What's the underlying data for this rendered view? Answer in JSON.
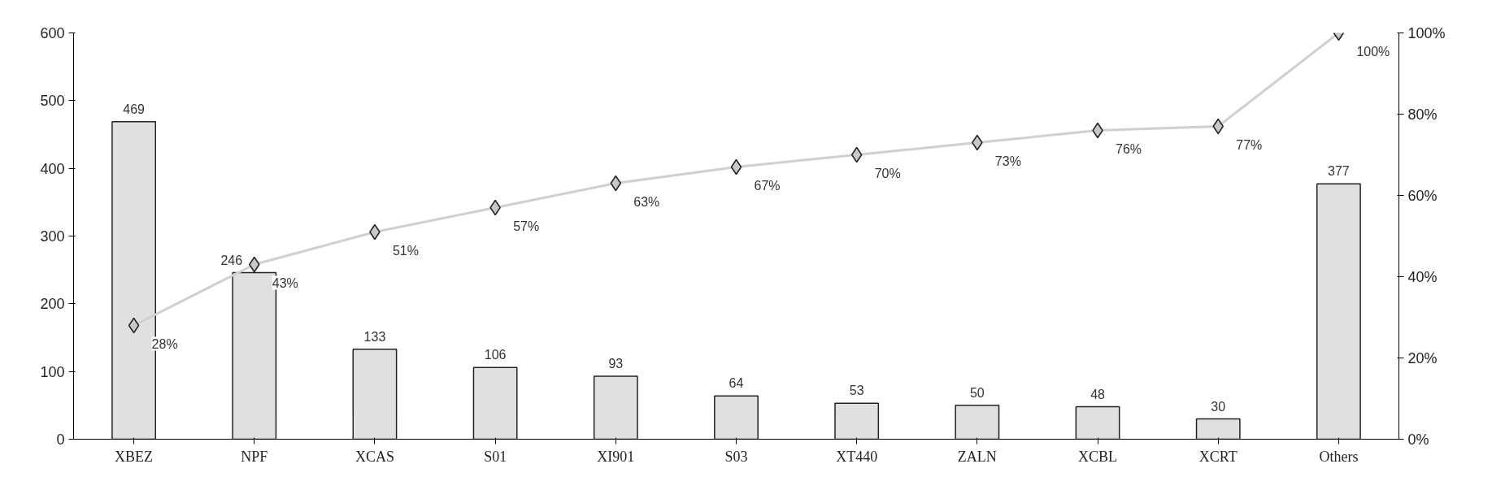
{
  "chart_data": {
    "type": "bar",
    "categories": [
      "XBEZ",
      "NPF",
      "XCAS",
      "S01",
      "XI901",
      "S03",
      "XT440",
      "ZALN",
      "XCBL",
      "XCRT",
      "Others"
    ],
    "series": [
      {
        "color": "#e0e0e0",
        "values": [
          469,
          246,
          133,
          106,
          93,
          64,
          53,
          50,
          48,
          30,
          377
        ],
        "data_labels": true
      },
      {
        "type": "line",
        "axis": "y2",
        "color": "#d0d0d0",
        "marker": "diamond",
        "values": [
          28,
          43,
          51,
          57,
          63,
          67,
          70,
          73,
          76,
          77,
          100
        ],
        "value_labels": [
          "28%",
          "43%",
          "51%",
          "57%",
          "63%",
          "67%",
          "70%",
          "73%",
          "76%",
          "77%",
          "100%"
        ]
      }
    ],
    "ylim": [
      0,
      600
    ],
    "yticks": [
      0,
      100,
      200,
      300,
      400,
      500,
      600
    ],
    "y2lim": [
      0,
      100
    ],
    "y2ticks": [
      {
        "value": 0,
        "label": "0%"
      },
      {
        "value": 20,
        "label": "20%"
      },
      {
        "value": 40,
        "label": "40%"
      },
      {
        "value": 60,
        "label": "60%"
      },
      {
        "value": 80,
        "label": "80%"
      },
      {
        "value": 100,
        "label": "100%"
      }
    ],
    "grid": false
  }
}
